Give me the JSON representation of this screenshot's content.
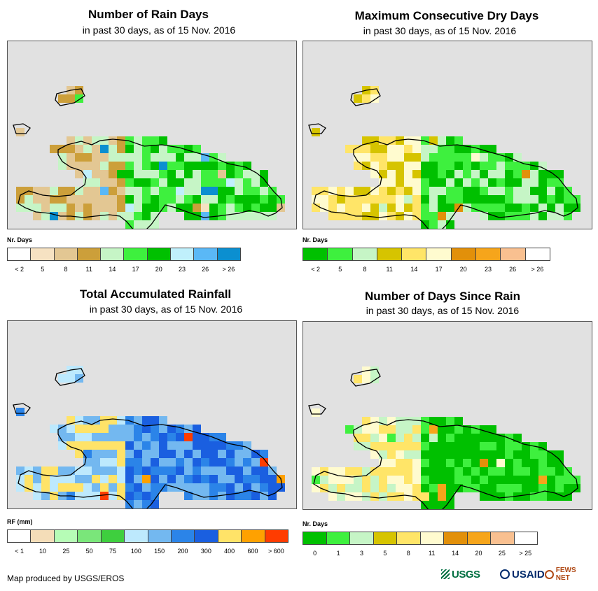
{
  "panels": [
    {
      "title": "Number of Rain Days",
      "subtitle": "in past 30 days, as of 15 Nov. 2016",
      "legend_label": "Nr. Days",
      "legend_colors": [
        "#ffffff",
        "#f6e2c2",
        "#e3c793",
        "#cc9f3a",
        "#c6f5c6",
        "#3ef03e",
        "#00c000",
        "#c0f0fc",
        "#5ab8f6",
        "#0b8fd0"
      ],
      "legend_ticks": [
        "< 2",
        "5",
        "8",
        "11",
        "14",
        "17",
        "20",
        "23",
        "26",
        "> 26"
      ],
      "grid_colors": [
        "#e3c793",
        "#cc9f3a",
        "#c6f5c6",
        "#3ef03e",
        "#00c000",
        "#c0f0fc",
        "#5ab8f6",
        "#0b8fd0",
        "#f6e2c2"
      ]
    },
    {
      "title": "Maximum Consecutive Dry Days",
      "subtitle": "in past 30 days, as of 15 Nov. 2016",
      "legend_label": "Nr. Days",
      "legend_colors": [
        "#00c000",
        "#3ef03e",
        "#c6f5c6",
        "#d6c400",
        "#ffe568",
        "#fffbcf",
        "#e2900a",
        "#f6a51b",
        "#f9c090",
        "#ffffff"
      ],
      "legend_ticks": [
        "< 2",
        "5",
        "8",
        "11",
        "14",
        "17",
        "20",
        "23",
        "26",
        "> 26"
      ],
      "grid_colors": [
        "#c6f5c6",
        "#3ef03e",
        "#00c000",
        "#d6c400",
        "#fffbcf",
        "#ffe568",
        "#e2900a",
        "#c6f5c6",
        "#3ef03e"
      ]
    },
    {
      "title": "Total Accumulated Rainfall",
      "subtitle": "in past 30 days, as of 15 Nov. 2016",
      "legend_label": "RF (mm)",
      "legend_colors": [
        "#ffffff",
        "#f4ddb8",
        "#b6fcb6",
        "#7ae67a",
        "#3ecf3e",
        "#bde9fd",
        "#73b8f0",
        "#2b84e8",
        "#1a5fe0",
        "#ffe368",
        "#ffa100",
        "#ff3c00"
      ],
      "legend_ticks": [
        "< 1",
        "10",
        "25",
        "50",
        "75",
        "100",
        "150",
        "200",
        "300",
        "400",
        "600",
        "> 600"
      ],
      "grid_colors": [
        "#2b84e8",
        "#1a5fe0",
        "#73b8f0",
        "#bde9fd",
        "#ffe368",
        "#ffa100",
        "#ff3c00",
        "#2b84e8",
        "#73b8f0"
      ]
    },
    {
      "title": "Number of Days Since Rain",
      "subtitle": "in past 30 days, as of 15 Nov. 2016",
      "legend_label": "Nr. Days",
      "legend_colors": [
        "#00c000",
        "#3ef03e",
        "#c6f5c6",
        "#d6c400",
        "#ffe568",
        "#fffbcf",
        "#e2900a",
        "#f6a51b",
        "#f9c090",
        "#ffffff"
      ],
      "legend_ticks": [
        "0",
        "1",
        "3",
        "5",
        "8",
        "11",
        "14",
        "20",
        "25",
        "> 25"
      ],
      "grid_colors": [
        "#00c000",
        "#3ef03e",
        "#00c000",
        "#c6f5c6",
        "#fffbcf",
        "#ffe568",
        "#e2900a",
        "#f6a51b",
        "#3ef03e"
      ]
    }
  ],
  "credit": "Map produced by USGS/EROS",
  "logos": [
    "USGS",
    "USAID",
    "FEWS NET"
  ]
}
